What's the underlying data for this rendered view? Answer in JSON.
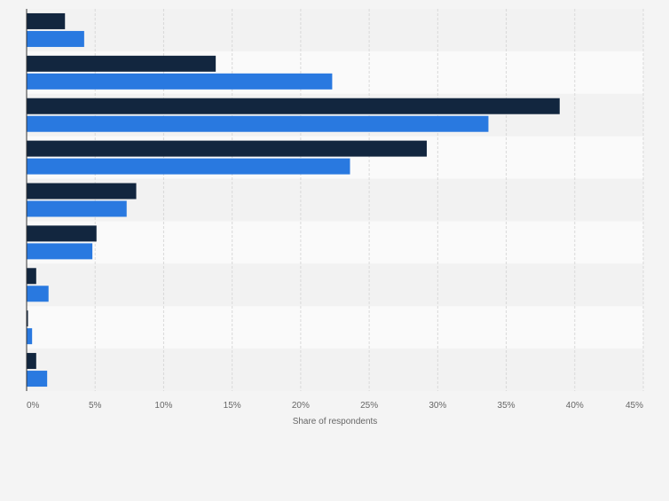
{
  "chart_data": {
    "type": "bar",
    "orientation": "horizontal",
    "xlabel": "Share of respondents",
    "xlim": [
      0,
      45
    ],
    "xticks": [
      0,
      5,
      10,
      15,
      20,
      25,
      30,
      35,
      40,
      45
    ],
    "xtick_labels": [
      "0%",
      "5%",
      "10%",
      "15%",
      "20%",
      "25%",
      "30%",
      "35%",
      "40%",
      "45%"
    ],
    "grid": true,
    "category_count": 9,
    "series": [
      {
        "color": "#12263f",
        "values": [
          2.8,
          13.8,
          38.9,
          29.2,
          8.0,
          5.1,
          0.7,
          0.1,
          0.7
        ]
      },
      {
        "color": "#2979e0",
        "values": [
          4.2,
          22.3,
          33.7,
          23.6,
          7.3,
          4.8,
          1.6,
          0.4,
          1.5
        ]
      }
    ],
    "colors": {
      "band_a": "#f2f2f2",
      "band_b": "#fafafa",
      "grid": "#d9d9d9",
      "axis": "#333333",
      "text": "#666666"
    }
  }
}
